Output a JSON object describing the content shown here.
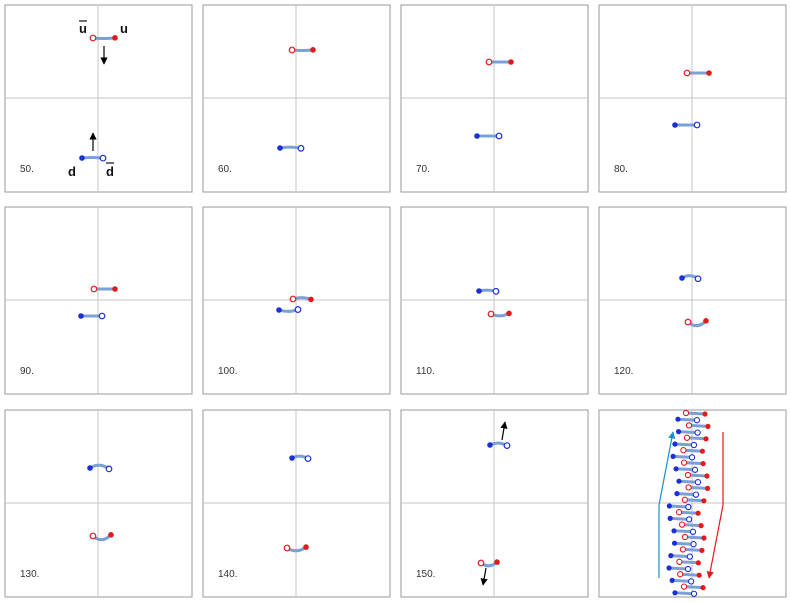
{
  "figure": {
    "description_free": true,
    "panel_labels": [
      "50.",
      "60.",
      "70.",
      "80.",
      "90.",
      "100.",
      "110.",
      "120.",
      "130.",
      "140.",
      "150."
    ],
    "particle_labels": {
      "u": "u",
      "u_bar": "u",
      "d": "d",
      "d_bar": "d"
    },
    "colors": {
      "quark_up": "#e3191c",
      "quark_down": "#1a2fd6",
      "flux_tube": "#7aa0d6",
      "frame": "#9a9a9a",
      "axis": "#c4c4c4",
      "summary_arrow_up": "#1a8fc8",
      "summary_arrow_down": "#e3191c"
    }
  }
}
